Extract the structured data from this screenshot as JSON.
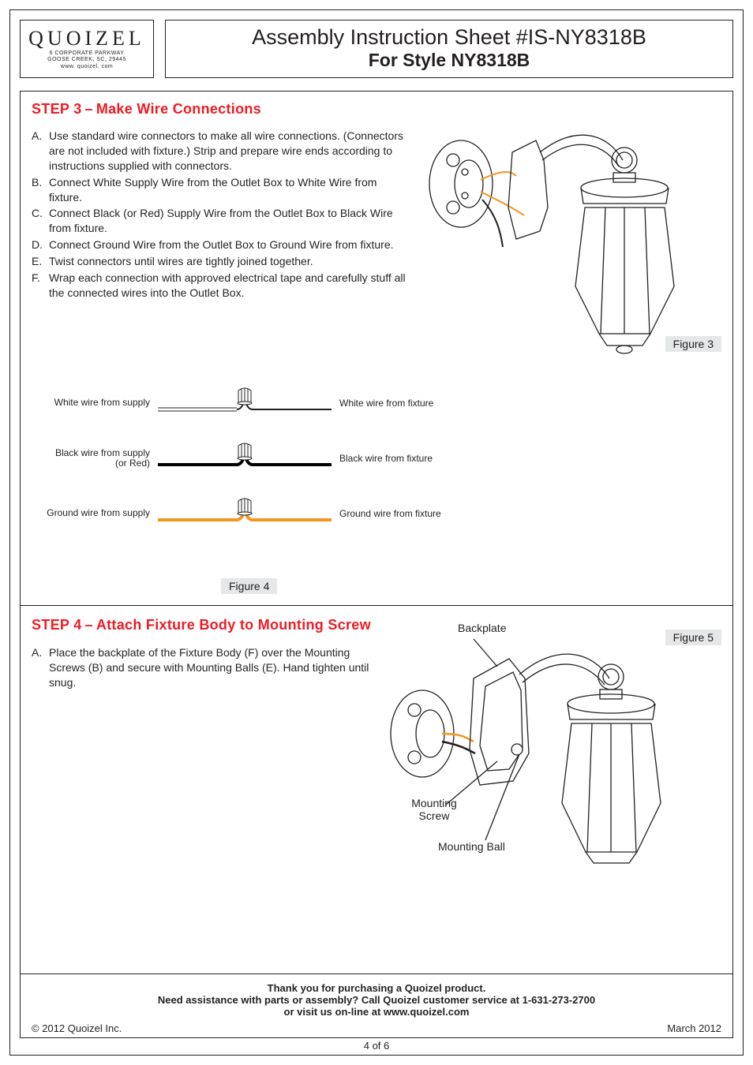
{
  "logo": {
    "brand": "QUOIZEL",
    "addr1": "6 CORPORATE PARKWAY",
    "addr2": "GOOSE CREEK, SC, 29445",
    "url": "www. quoizel. com"
  },
  "title": {
    "line1": "Assembly Instruction Sheet #IS-NY8318B",
    "line2": "For Style NY8318B"
  },
  "step3": {
    "heading_a": "STEP 3",
    "heading_b": "Make Wire Connections",
    "items": [
      {
        "l": "A.",
        "t": "Use standard wire connectors to make all wire connections. (Connectors are not included with fixture.) Strip and prepare wire ends according to instructions supplied with connectors."
      },
      {
        "l": "B.",
        "t": "Connect White Supply Wire from the Outlet Box to White Wire from fixture."
      },
      {
        "l": "C.",
        "t": "Connect Black (or Red) Supply Wire from the Outlet Box to Black Wire from fixture."
      },
      {
        "l": "D.",
        "t": "Connect Ground Wire from the Outlet Box to Ground Wire from fixture."
      },
      {
        "l": "E.",
        "t": "Twist connectors until wires are tightly joined together."
      },
      {
        "l": "F.",
        "t": "Wrap each connection with approved electrical tape and carefully stuff all the connected wires into the Outlet Box."
      }
    ],
    "figure3_label": "Figure 3"
  },
  "wire_diagram": {
    "rows": [
      {
        "left": "White wire from supply",
        "right": "White wire from fixture",
        "stroke": "#231f20",
        "fill": "#ffffff",
        "width": 2,
        "left_style": "double"
      },
      {
        "left": "Black wire from supply\n(or Red)",
        "right": "Black wire from fixture",
        "stroke": "#000000",
        "fill": "#000000",
        "width": 4,
        "left_style": "single"
      },
      {
        "left": "Ground wire from supply",
        "right": "Ground wire from fixture",
        "stroke": "#f7941d",
        "fill": "#f7941d",
        "width": 4,
        "left_style": "single"
      }
    ],
    "figure4_label": "Figure 4",
    "connector_color": "#a7a9ac"
  },
  "step4": {
    "heading_a": "STEP 4",
    "heading_b": "Attach Fixture Body to Mounting Screw",
    "items": [
      {
        "l": "A.",
        "t": "Place the backplate of the Fixture Body (F) over the Mounting Screws (B) and secure with Mounting Balls (E). Hand tighten until snug."
      }
    ],
    "figure5_label": "Figure 5",
    "callouts": {
      "backplate": "Backplate",
      "mounting_screw": "Mounting Screw",
      "mounting_ball": "Mounting Ball"
    }
  },
  "footer": {
    "l1": "Thank you for purchasing a Quoizel product.",
    "l2": "Need assistance with parts or assembly? Call Quoizel customer service at 1-631-273-2700",
    "l3": "or visit us on-line at www.quoizel.com",
    "copyright": "© 2012  Quoizel Inc.",
    "date": "March 2012",
    "page": "4 of 6"
  },
  "lantern_svg": {
    "wire_orange": "#f7941d",
    "wire_black": "#231f20",
    "stroke": "#231f20"
  }
}
